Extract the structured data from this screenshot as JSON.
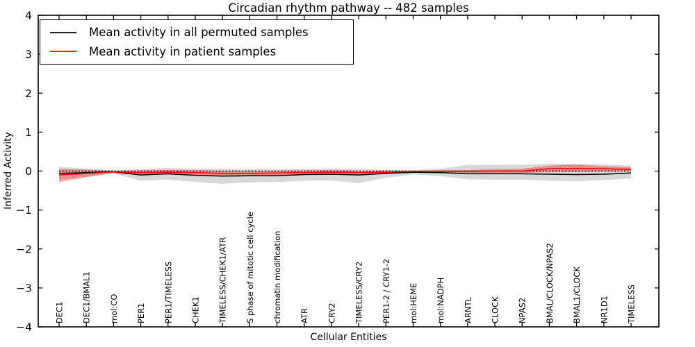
{
  "figure": {
    "title": "Circadian rhythm pathway -- 482 samples",
    "xlabel": "Cellular Entities",
    "ylabel": "Inferred Activity"
  },
  "legend": {
    "entries": [
      {
        "label": "Mean activity in all permuted samples",
        "color": "#000000"
      },
      {
        "label": "Mean activity in patient samples",
        "color": "#ff0000"
      }
    ]
  },
  "chart_data": {
    "type": "line",
    "title": "Circadian rhythm pathway -- 482 samples",
    "xlabel": "Cellular Entities",
    "ylabel": "Inferred Activity",
    "ylim": [
      -4,
      4
    ],
    "yticks": [
      4,
      3,
      2,
      1,
      0,
      -1,
      -2,
      -3,
      -4
    ],
    "yticklabels": [
      "4",
      "3",
      "2",
      "1",
      "0",
      "−1",
      "−2",
      "−3",
      "−4"
    ],
    "grid": false,
    "legend_position": "upper left",
    "categories": [
      "DEC1",
      "DEC1/BMAL1",
      "mol:CO",
      "PER1",
      "PER1/TIMELESS",
      "CHEK1",
      "TIMELESS/CHEK1/ATR",
      "S phase of mitotic cell cycle",
      "chromatin modification",
      "ATR",
      "CRY2",
      "TIMELESS/CRY2",
      "PER1-2 / CRY1-2",
      "mol:HEME",
      "mol:NADPH",
      "ARNTL",
      "CLOCK",
      "NPAS2",
      "BMAL/CLOCK/NPAS2",
      "BMAL1/CLOCK",
      "NR1D1",
      "TIMELESS"
    ],
    "series": [
      {
        "name": "Mean activity in all permuted samples",
        "color": "#000000",
        "width": 1.5,
        "values": [
          -0.06,
          -0.04,
          -0.02,
          -0.1,
          -0.07,
          -0.11,
          -0.13,
          -0.12,
          -0.12,
          -0.09,
          -0.08,
          -0.1,
          -0.06,
          -0.03,
          -0.04,
          -0.07,
          -0.07,
          -0.07,
          -0.08,
          -0.09,
          -0.08,
          -0.05
        ]
      },
      {
        "name": "Mean activity in patient samples",
        "color": "#ff0000",
        "width": 1.5,
        "values": [
          -0.1,
          -0.06,
          -0.02,
          -0.04,
          -0.03,
          -0.04,
          -0.06,
          -0.06,
          -0.05,
          -0.04,
          -0.03,
          -0.04,
          -0.03,
          -0.01,
          -0.01,
          -0.01,
          0.0,
          0.0,
          0.06,
          0.07,
          0.06,
          0.04
        ]
      }
    ],
    "bands": [
      {
        "name": "permuted samples std band",
        "color": "#999999",
        "opacity": 0.38,
        "upper": [
          0.11,
          0.06,
          0.02,
          0.05,
          0.08,
          0.06,
          0.05,
          0.05,
          0.04,
          0.05,
          0.06,
          0.05,
          0.03,
          0.02,
          0.06,
          0.16,
          0.16,
          0.16,
          0.19,
          0.19,
          0.17,
          0.14
        ],
        "lower": [
          -0.22,
          -0.14,
          -0.06,
          -0.25,
          -0.22,
          -0.28,
          -0.33,
          -0.29,
          -0.28,
          -0.25,
          -0.24,
          -0.31,
          -0.17,
          -0.09,
          -0.13,
          -0.21,
          -0.22,
          -0.22,
          -0.25,
          -0.26,
          -0.23,
          -0.19
        ]
      },
      {
        "name": "patient samples std band",
        "color": "#ff0000",
        "opacity": 0.35,
        "upper": [
          0.05,
          0.04,
          0.0,
          0.02,
          0.03,
          0.02,
          0.01,
          0.01,
          0.01,
          0.02,
          0.02,
          0.01,
          0.01,
          0.01,
          0.02,
          0.03,
          0.05,
          0.06,
          0.14,
          0.16,
          0.13,
          0.09
        ],
        "lower": [
          -0.28,
          -0.16,
          -0.05,
          -0.1,
          -0.09,
          -0.1,
          -0.12,
          -0.12,
          -0.11,
          -0.1,
          -0.09,
          -0.1,
          -0.07,
          -0.03,
          -0.04,
          -0.05,
          -0.05,
          -0.05,
          -0.02,
          -0.02,
          -0.01,
          0.0
        ]
      }
    ],
    "reference_line": {
      "y": 0,
      "style": "dotted",
      "color": "#000000"
    }
  }
}
